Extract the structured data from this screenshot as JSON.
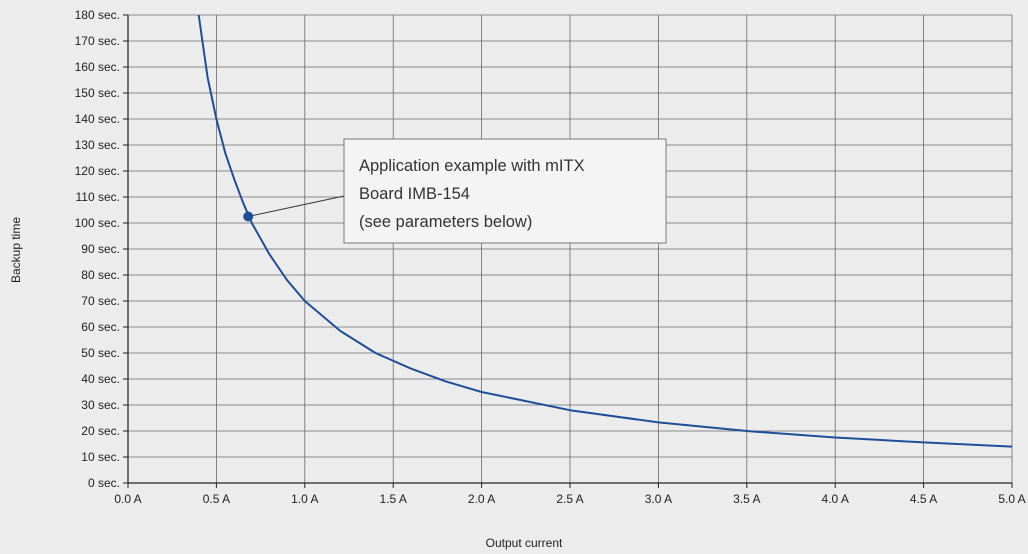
{
  "chart_data": {
    "type": "line",
    "title": "",
    "xlabel": "Output current",
    "ylabel": "Backup time",
    "xlim": [
      0,
      5
    ],
    "ylim": [
      0,
      180
    ],
    "grid": true,
    "x_ticks": [
      "0.0 A",
      "0.5 A",
      "1.0 A",
      "1.5 A",
      "2.0 A",
      "2.5 A",
      "3.0 A",
      "3.5 A",
      "4.0 A",
      "4.5 A",
      "5.0 A"
    ],
    "y_ticks": [
      "0 sec.",
      "10 sec.",
      "20 sec.",
      "30 sec.",
      "40 sec.",
      "50 sec.",
      "60 sec.",
      "70 sec.",
      "80 sec.",
      "90 sec.",
      "100 sec.",
      "110 sec.",
      "120 sec.",
      "130 sec.",
      "140 sec.",
      "150 sec.",
      "160 sec.",
      "170 sec.",
      "180 sec."
    ],
    "series": [
      {
        "name": "",
        "color": "#1f4e99",
        "x": [
          0.4,
          0.45,
          0.5,
          0.55,
          0.6,
          0.65,
          0.7,
          0.8,
          0.9,
          1.0,
          1.2,
          1.4,
          1.6,
          1.8,
          2.0,
          2.5,
          3.0,
          3.5,
          4.0,
          4.5,
          5.0
        ],
        "y": [
          180,
          156,
          140,
          127,
          117,
          108,
          100,
          88,
          78,
          70,
          58.5,
          50,
          44,
          39,
          35,
          28,
          23.3,
          20,
          17.5,
          15.6,
          14
        ]
      }
    ],
    "highlight_point": {
      "x": 0.68,
      "y": 102.5,
      "color": "#1f4e99"
    },
    "annotation": {
      "lines": [
        "Application example with mITX",
        "Board IMB-154",
        "(see parameters below)"
      ],
      "target_x": 0.68,
      "target_y": 102.5
    }
  }
}
